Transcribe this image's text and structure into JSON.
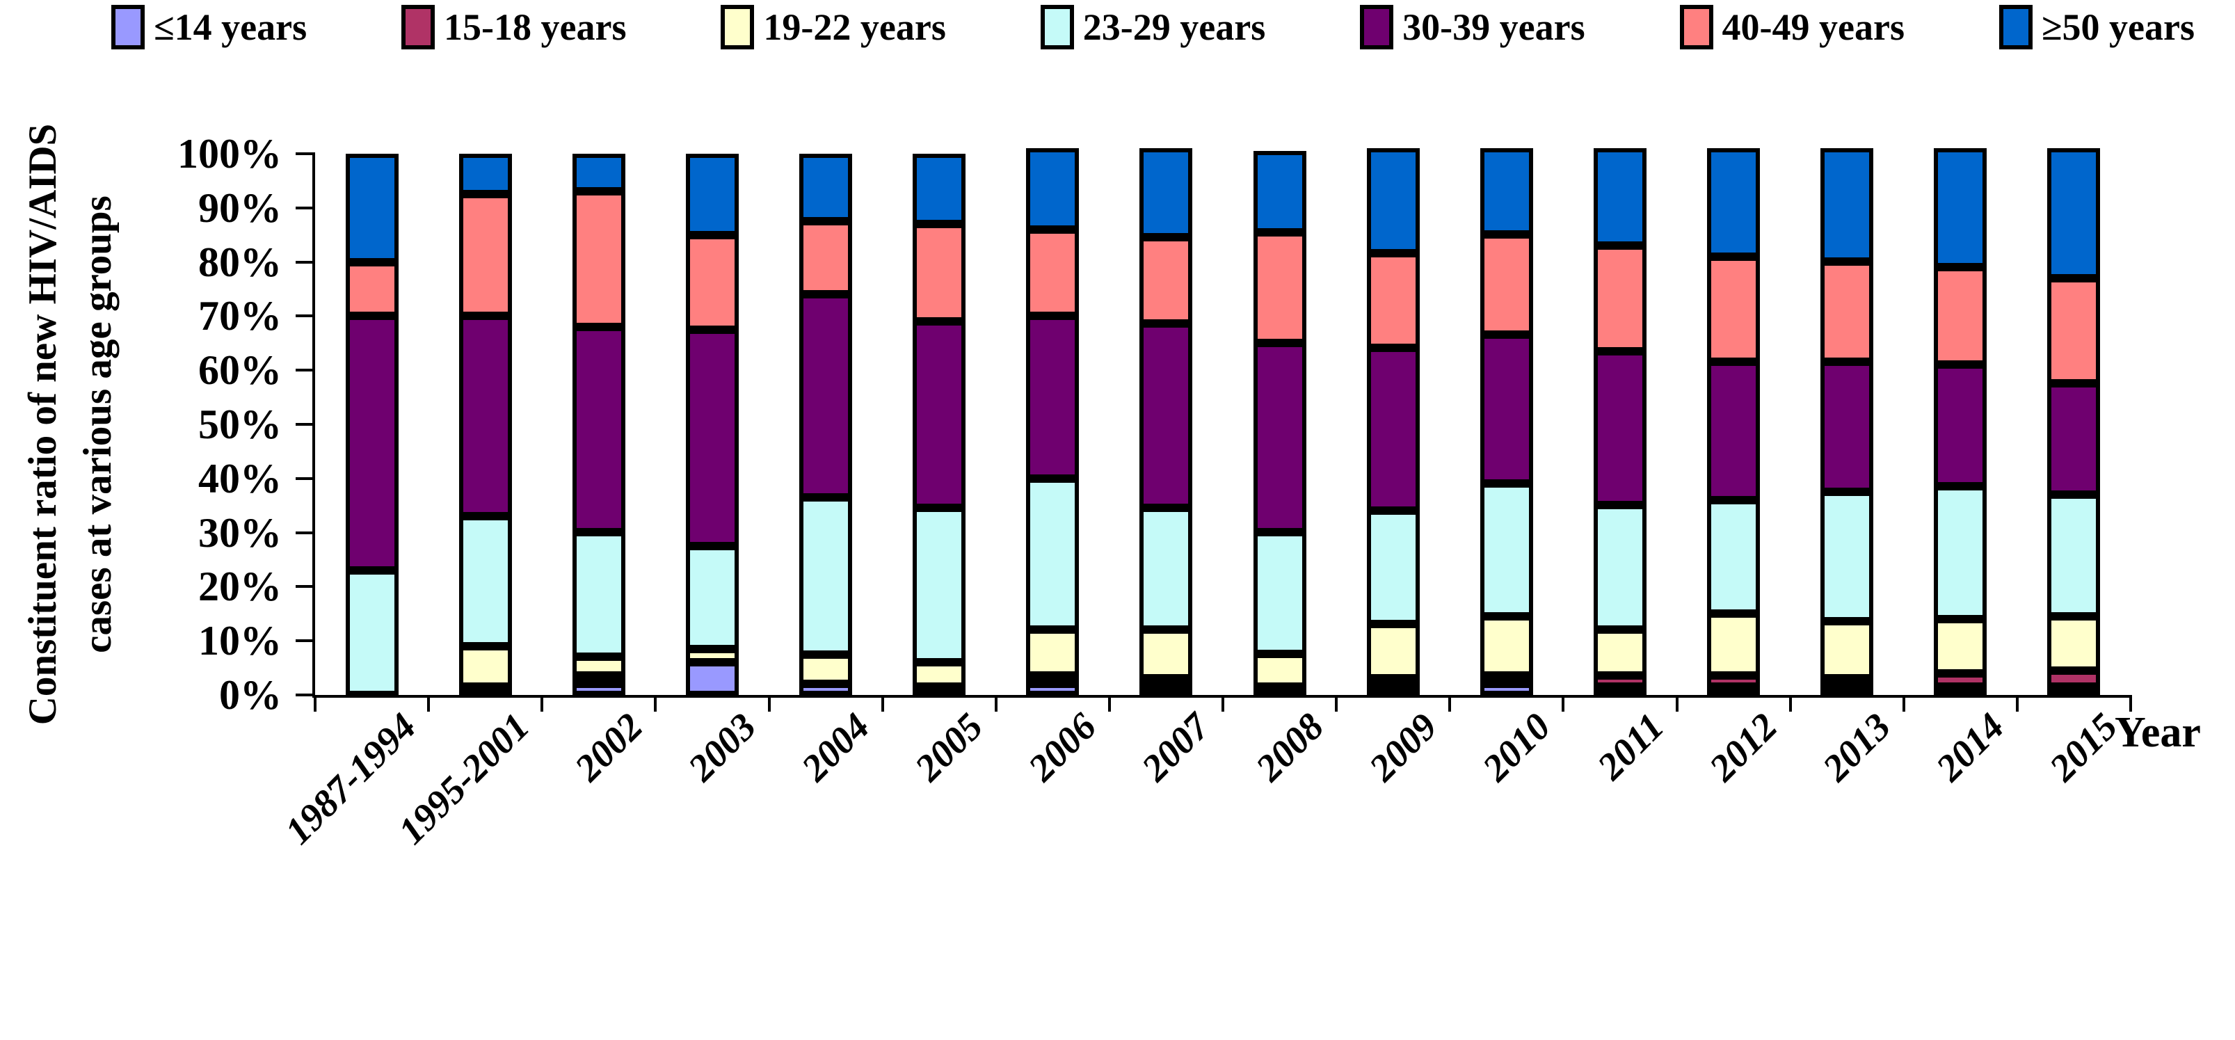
{
  "chart_data": {
    "type": "bar",
    "stacked": true,
    "percent_stacked": true,
    "xlabel": "Year",
    "ylabel_line1": "Constituent ratio of new HIV/AIDS",
    "ylabel_line2": "cases at various age groups",
    "legend_position": "top",
    "grid": false,
    "y_axis": {
      "min": 0,
      "max": 100,
      "step": 10,
      "tick_labels_top_to_bottom": [
        "100%",
        "90%",
        "80%",
        "70%",
        "60%",
        "50%",
        "40%",
        "30%",
        "20%",
        "10%",
        "0%"
      ]
    },
    "categories": [
      "1987-1994",
      "1995-2001",
      "2002",
      "2003",
      "2004",
      "2005",
      "2006",
      "2007",
      "2008",
      "2009",
      "2010",
      "2011",
      "2012",
      "2013",
      "2014",
      "2015"
    ],
    "series": [
      {
        "name": "≤14 years",
        "color": "#9999FF",
        "values": [
          0,
          0,
          2,
          6,
          2,
          0,
          2,
          1,
          0,
          1,
          2,
          0.5,
          0.5,
          0.5,
          0.5,
          0.5
        ]
      },
      {
        "name": "15-18 years",
        "color": "#B03366",
        "values": [
          0,
          1.5,
          1.5,
          0,
          0,
          1.5,
          0.5,
          1,
          1,
          1,
          0.5,
          2,
          2,
          1.5,
          2.5,
          3
        ]
      },
      {
        "name": "19-22 years",
        "color": "#FFFFCC",
        "values": [
          0,
          7.5,
          3.5,
          2.5,
          5.5,
          4.5,
          8.5,
          9,
          6,
          10,
          11,
          8.5,
          11.5,
          10.5,
          10,
          10
        ]
      },
      {
        "name": "23-29 years",
        "color": "#C5FAF8",
        "values": [
          23,
          24,
          23,
          19,
          29,
          28.5,
          28,
          22.5,
          22.5,
          21,
          24.5,
          23,
          21,
          24,
          24.5,
          22.5
        ]
      },
      {
        "name": "30-39 years",
        "color": "#6F006F",
        "values": [
          47,
          37,
          38,
          40,
          37.5,
          34.5,
          30,
          34,
          35,
          30,
          27.5,
          28.5,
          25.5,
          24,
          22.5,
          20.5
        ]
      },
      {
        "name": "40-49 years",
        "color": "#FF8080",
        "values": [
          10,
          22.5,
          25,
          17.5,
          13.5,
          18,
          16,
          16,
          20.5,
          17.5,
          18.5,
          19.5,
          19.5,
          18.5,
          18,
          19.5
        ]
      },
      {
        "name": "≥50 years",
        "color": "#0066CC",
        "values": [
          20,
          7.5,
          7,
          15,
          12.5,
          13,
          15,
          16.5,
          15,
          19.5,
          16,
          18,
          20,
          21,
          22,
          24
        ]
      }
    ]
  }
}
